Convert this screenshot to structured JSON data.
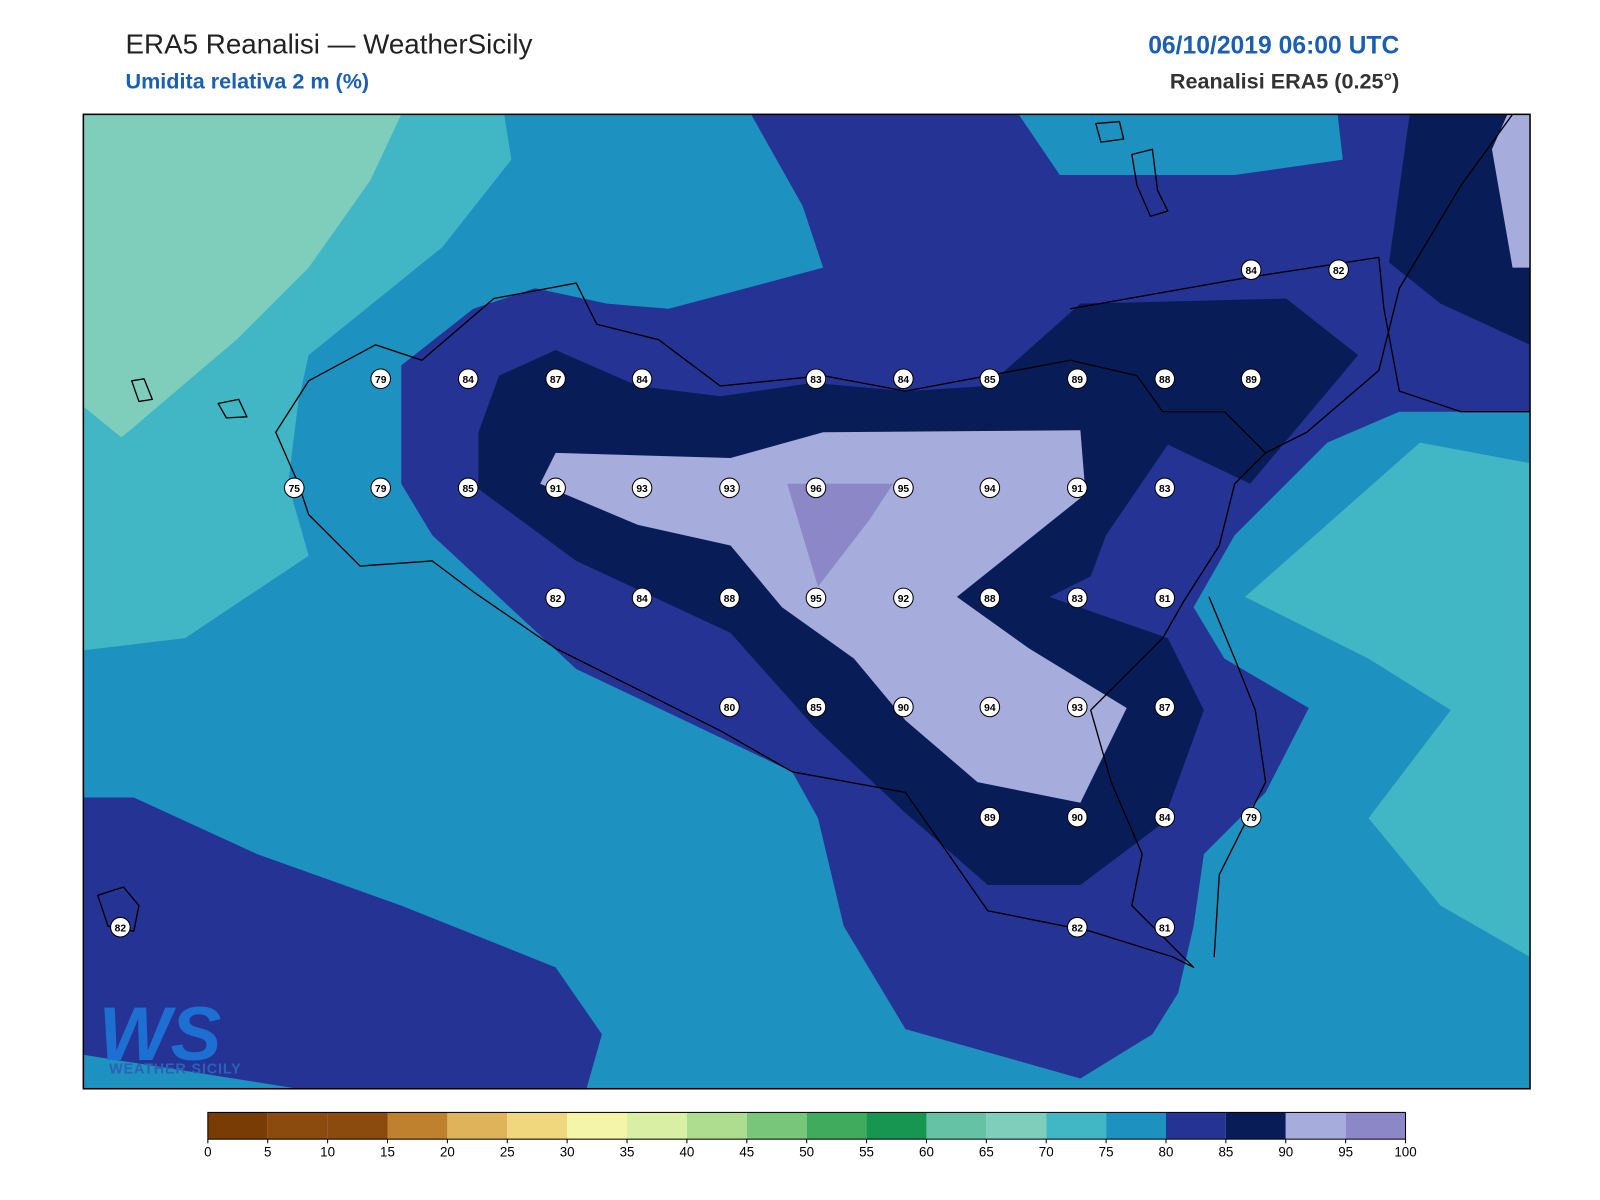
{
  "header": {
    "title": "ERA5 Reanalisi — WeatherSicily",
    "subtitle": "Umidita relativa 2 m (%)",
    "datetime": "06/10/2019 06:00 UTC",
    "source": "Reanalisi ERA5 (0.25°)"
  },
  "stations": [
    84,
    82,
    79,
    84,
    87,
    84,
    83,
    84,
    85,
    89,
    88,
    89,
    75,
    79,
    85,
    91,
    93,
    93,
    96,
    95,
    94,
    91,
    83,
    82,
    84,
    88,
    95,
    92,
    88,
    83,
    81,
    80,
    85,
    90,
    94,
    93,
    87,
    89,
    90,
    84,
    79,
    82,
    82,
    81
  ],
  "colorbar": {
    "ticks": [
      0,
      5,
      10,
      15,
      20,
      25,
      30,
      35,
      40,
      45,
      50,
      55,
      60,
      65,
      70,
      75,
      80,
      85,
      90,
      95,
      100
    ],
    "colors": [
      "#7a3c05",
      "#8b4a0e",
      "#8b4a0e",
      "#bf812d",
      "#dfb35a",
      "#f0d67c",
      "#f5f5a8",
      "#d9efa3",
      "#addd8e",
      "#78c679",
      "#41ab5d",
      "#169650",
      "#66c2a4",
      "#7fcdbb",
      "#41b6c4",
      "#1d91c0",
      "#253494",
      "#081d58",
      "#a6acdc",
      "#8c88c8"
    ]
  },
  "logo": {
    "mark": "WS",
    "name": "WEATHER SICILY"
  }
}
